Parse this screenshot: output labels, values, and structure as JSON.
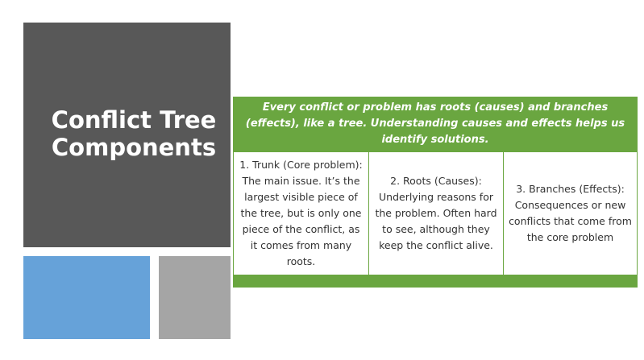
{
  "slide": {
    "title_line1": "Conflict Tree",
    "title_line2": "Components"
  },
  "table": {
    "header": "Every conflict or problem has roots (causes) and branches (effects), like a tree. Understanding causes and effects helps us identify solutions.",
    "cells": [
      {
        "text": "1. Trunk (Core problem): The main issue. It’s the largest visible piece of the tree, but is only one piece of the conflict, as it comes from many roots."
      },
      {
        "text": "2. Roots (Causes): Underlying reasons for the problem. Often hard to see, although they keep the conflict alive."
      },
      {
        "text": "3. Branches (Effects): Consequences or new conflicts that come from the core problem"
      }
    ]
  },
  "colors": {
    "title_block": "#585858",
    "accent_blue": "#66a2d9",
    "accent_gray": "#a5a5a5",
    "table_green": "#6aa640"
  }
}
